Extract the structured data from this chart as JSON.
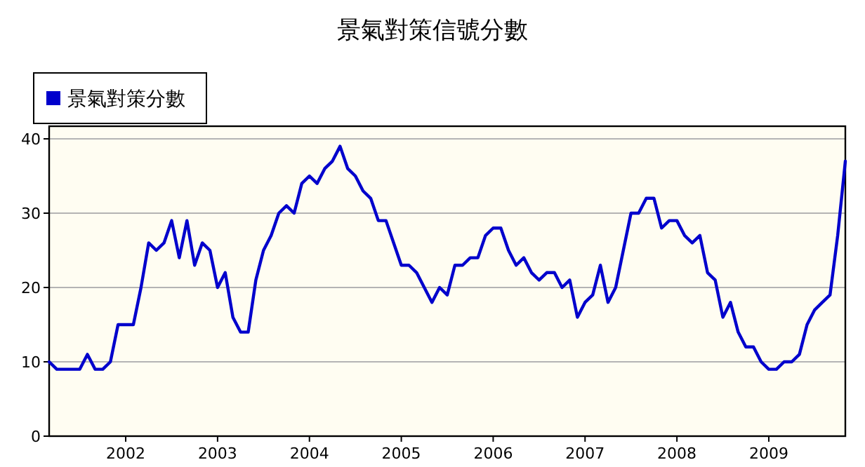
{
  "chart_data": {
    "type": "line",
    "title": "景氣對策信號分數",
    "x": [
      "2001-03",
      "2001-04",
      "2001-05",
      "2001-06",
      "2001-07",
      "2001-08",
      "2001-09",
      "2001-10",
      "2001-11",
      "2001-12",
      "2002-01",
      "2002-02",
      "2002-03",
      "2002-04",
      "2002-05",
      "2002-06",
      "2002-07",
      "2002-08",
      "2002-09",
      "2002-10",
      "2002-11",
      "2002-12",
      "2003-01",
      "2003-02",
      "2003-03",
      "2003-04",
      "2003-05",
      "2003-06",
      "2003-07",
      "2003-08",
      "2003-09",
      "2003-10",
      "2003-11",
      "2003-12",
      "2004-01",
      "2004-02",
      "2004-03",
      "2004-04",
      "2004-05",
      "2004-06",
      "2004-07",
      "2004-08",
      "2004-09",
      "2004-10",
      "2004-11",
      "2004-12",
      "2005-01",
      "2005-02",
      "2005-03",
      "2005-04",
      "2005-05",
      "2005-06",
      "2005-07",
      "2005-08",
      "2005-09",
      "2005-10",
      "2005-11",
      "2005-12",
      "2006-01",
      "2006-02",
      "2006-03",
      "2006-04",
      "2006-05",
      "2006-06",
      "2006-07",
      "2006-08",
      "2006-09",
      "2006-10",
      "2006-11",
      "2006-12",
      "2007-01",
      "2007-02",
      "2007-03",
      "2007-04",
      "2007-05",
      "2007-06",
      "2007-07",
      "2007-08",
      "2007-09",
      "2007-10",
      "2007-11",
      "2007-12",
      "2008-01",
      "2008-02",
      "2008-03",
      "2008-04",
      "2008-05",
      "2008-06",
      "2008-07",
      "2008-08",
      "2008-09",
      "2008-10",
      "2008-11",
      "2008-12",
      "2009-01",
      "2009-02",
      "2009-03",
      "2009-04",
      "2009-05",
      "2009-06",
      "2009-07",
      "2009-08",
      "2009-09",
      "2009-10",
      "2009-11"
    ],
    "series": [
      {
        "name": "景氣對策分數",
        "color": "#0000cc",
        "values": [
          10,
          9,
          9,
          9,
          9,
          11,
          9,
          9,
          10,
          15,
          15,
          15,
          20,
          26,
          25,
          26,
          29,
          24,
          29,
          23,
          26,
          25,
          20,
          22,
          16,
          14,
          14,
          21,
          25,
          27,
          30,
          31,
          30,
          34,
          35,
          34,
          36,
          37,
          39,
          36,
          35,
          33,
          32,
          29,
          29,
          26,
          23,
          23,
          22,
          20,
          18,
          20,
          19,
          23,
          23,
          24,
          24,
          27,
          28,
          28,
          25,
          23,
          24,
          22,
          21,
          22,
          22,
          20,
          21,
          16,
          18,
          19,
          23,
          18,
          20,
          25,
          30,
          30,
          32,
          32,
          28,
          29,
          29,
          27,
          26,
          27,
          22,
          21,
          16,
          18,
          14,
          12,
          12,
          10,
          9,
          9,
          10,
          10,
          11,
          15,
          17,
          18,
          19,
          27,
          37
        ]
      }
    ],
    "xlim": [
      "2001-03",
      "2009-11"
    ],
    "xticks": [
      "2002",
      "2003",
      "2004",
      "2005",
      "2006",
      "2007",
      "2008",
      "2009"
    ],
    "ylim": [
      0,
      41.7
    ],
    "yticks": [
      0,
      10,
      20,
      30,
      40
    ],
    "grid": "y",
    "legend": "top left",
    "line_style": "solid",
    "marker": "none"
  }
}
